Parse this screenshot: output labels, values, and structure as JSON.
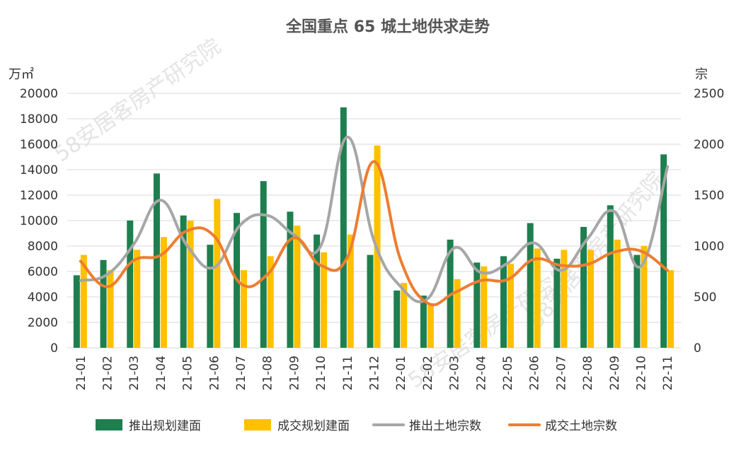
{
  "chart_data": {
    "type": "bar",
    "title": "全国重点 65 城土地供求走势",
    "y_left_label": "万㎡",
    "y_right_label": "宗",
    "y_left_lim": [
      0,
      20000
    ],
    "y_left_ticks": [
      0,
      2000,
      4000,
      6000,
      8000,
      10000,
      12000,
      14000,
      16000,
      18000,
      20000
    ],
    "y_right_lim": [
      0,
      2500
    ],
    "y_right_ticks": [
      0,
      500,
      1000,
      1500,
      2000,
      2500
    ],
    "grid": true,
    "legend_position": "bottom",
    "categories": [
      "21-01",
      "21-02",
      "21-03",
      "21-04",
      "21-05",
      "21-06",
      "21-07",
      "21-08",
      "21-09",
      "21-10",
      "21-11",
      "21-12",
      "22-01",
      "22-02",
      "22-03",
      "22-04",
      "22-05",
      "22-06",
      "22-07",
      "22-08",
      "22-09",
      "22-10",
      "22-11"
    ],
    "series": [
      {
        "name": "推出规划建面",
        "type": "bar",
        "axis": "left",
        "color": "#1e7f4e",
        "values": [
          5700,
          6900,
          10000,
          13700,
          10400,
          8100,
          10600,
          13100,
          10700,
          8900,
          18900,
          7300,
          4500,
          4100,
          8500,
          6700,
          7200,
          9800,
          7000,
          9500,
          11200,
          7300,
          15200
        ]
      },
      {
        "name": "成交规划建面",
        "type": "bar",
        "axis": "left",
        "color": "#ffc000",
        "values": [
          7300,
          6100,
          7700,
          8700,
          10000,
          11700,
          6100,
          7200,
          9600,
          7500,
          8900,
          15900,
          5100,
          3500,
          5400,
          6400,
          6600,
          7800,
          7700,
          7700,
          8500,
          8000,
          6100
        ]
      },
      {
        "name": "推出土地宗数",
        "type": "line",
        "axis": "right",
        "color": "#a6a6a6",
        "values": [
          660,
          720,
          1020,
          1450,
          1000,
          790,
          1210,
          1300,
          1110,
          1000,
          2070,
          1050,
          600,
          480,
          980,
          740,
          830,
          1030,
          760,
          1070,
          1340,
          800,
          1780
        ]
      },
      {
        "name": "成交土地宗数",
        "type": "line",
        "axis": "right",
        "color": "#ed7d31",
        "values": [
          850,
          600,
          860,
          910,
          1150,
          1100,
          630,
          720,
          1080,
          810,
          890,
          1830,
          860,
          440,
          540,
          660,
          670,
          870,
          810,
          820,
          940,
          950,
          760
        ]
      }
    ]
  },
  "watermark": "58安居客房产研究院"
}
